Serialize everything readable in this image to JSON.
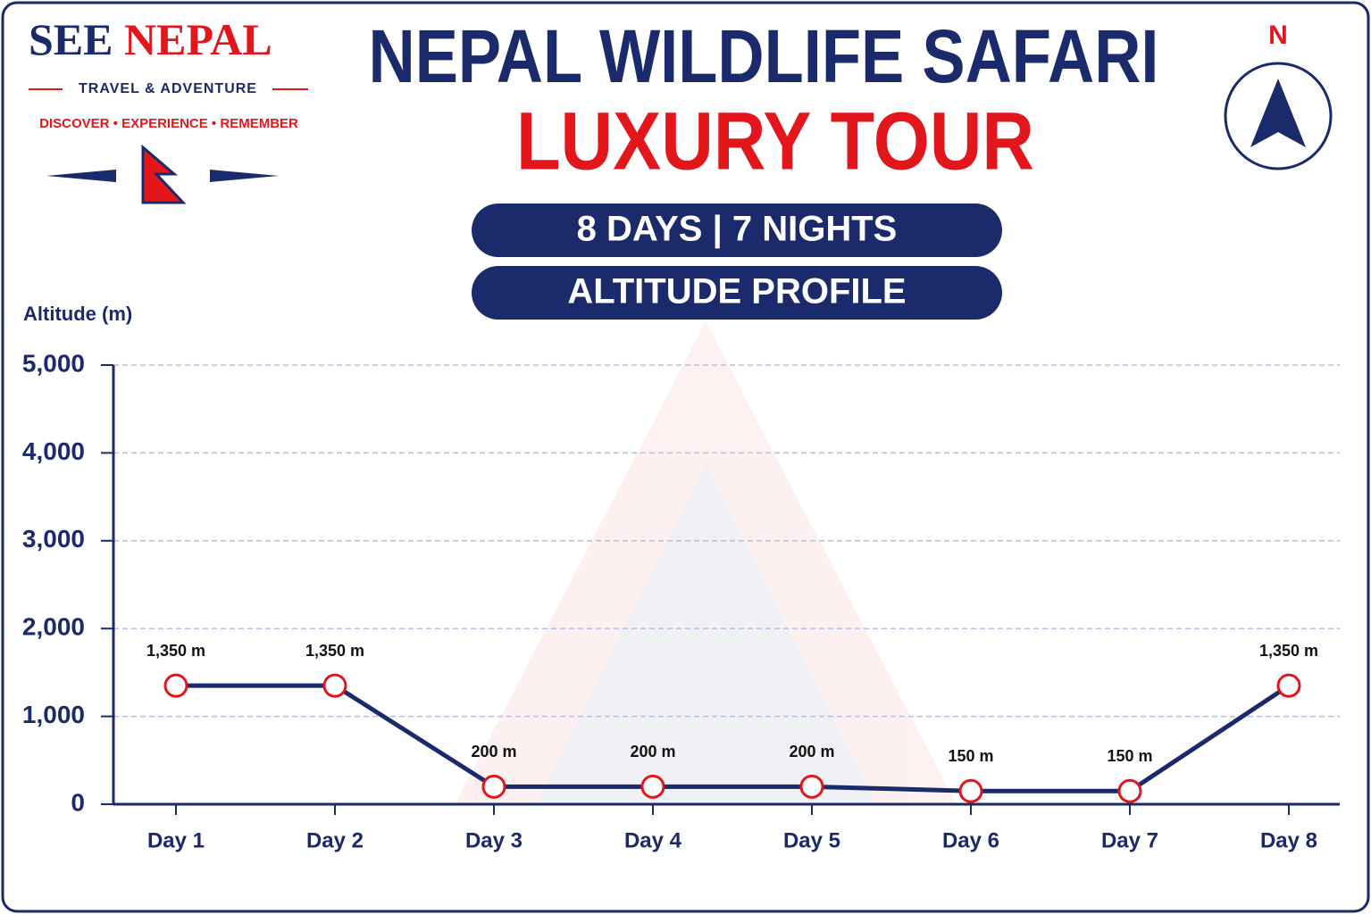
{
  "chart_data": {
    "type": "line",
    "brand_first": "SEE",
    "brand_second": "NEPAL",
    "tagline": "TRAVEL & ADVENTURE",
    "motto": "DISCOVER • EXPERIENCE • REMEMBER",
    "title": "NEPAL WILDLIFE SAFARI",
    "subtitle": "LUXURY TOUR",
    "duration": "8 DAYS | 7 NIGHTS",
    "section": "ALTITUDE PROFILE",
    "compass": "N",
    "ylabel": "Altitude (m)",
    "categories": [
      "Day 1",
      "Day 2",
      "Day 3",
      "Day 4",
      "Day 5",
      "Day 6",
      "Day 7",
      "Day 8"
    ],
    "values": [
      1350,
      1350,
      200,
      200,
      200,
      150,
      150,
      1350
    ],
    "value_labels": [
      "1,350 m",
      "1,350 m",
      "200 m",
      "200 m",
      "200 m",
      "150 m",
      "150 m",
      "1,350 m"
    ],
    "color": "#1b2a6b",
    "marker_color": "#e3161c",
    "ylim": [
      0,
      5000
    ],
    "yticks": [
      0,
      {
        "value": 1000,
        "label": "1,000"
      },
      {
        "value": 2000,
        "label": "2,000"
      },
      {
        "value": 3000,
        "label": "3,000"
      },
      {
        "value": 4000,
        "label": "4,000"
      },
      {
        "value": 5000,
        "label": "5,000"
      }
    ],
    "grid": true
  }
}
